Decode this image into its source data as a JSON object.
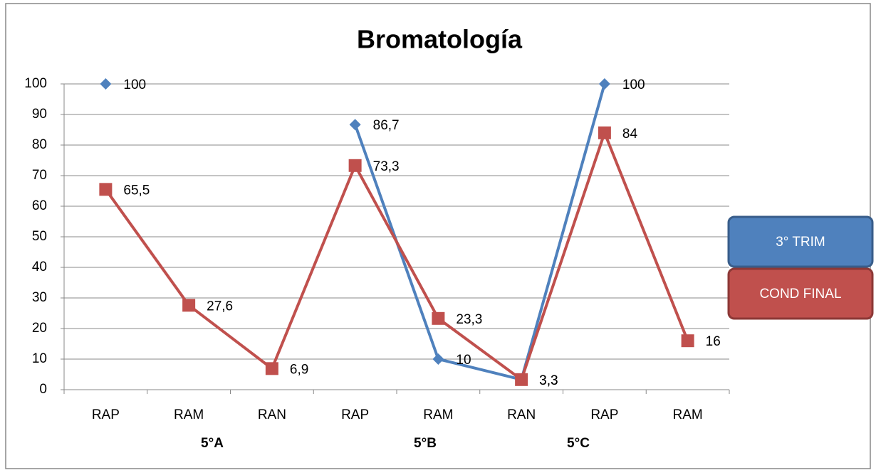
{
  "chart_data": {
    "type": "line",
    "title": "Bromatología",
    "categories": [
      "RAP",
      "RAM",
      "RAN",
      "RAP",
      "RAM",
      "RAN",
      "RAP",
      "RAM"
    ],
    "groups": [
      "5°A",
      "5°B",
      "5°C"
    ],
    "ylim": [
      0,
      100
    ],
    "yticks": [
      0,
      10,
      20,
      30,
      40,
      50,
      60,
      70,
      80,
      90,
      100
    ],
    "grid": true,
    "legend": "right",
    "series": [
      {
        "name": "3° TRIM",
        "color": "#4f81bd",
        "marker": "diamond",
        "values": [
          100,
          null,
          null,
          86.7,
          10,
          3.3,
          100,
          null
        ],
        "value_labels": [
          "100",
          null,
          null,
          "86,7",
          "10",
          "3,3",
          "100",
          null
        ]
      },
      {
        "name": "COND FINAL",
        "color": "#c0504d",
        "marker": "square",
        "values": [
          65.5,
          27.6,
          6.9,
          73.3,
          23.3,
          3.3,
          84,
          16
        ],
        "value_labels": [
          "65,5",
          "27,6",
          "6,9",
          "73,3",
          "23,3",
          "3,3",
          "84",
          "16"
        ]
      }
    ]
  }
}
